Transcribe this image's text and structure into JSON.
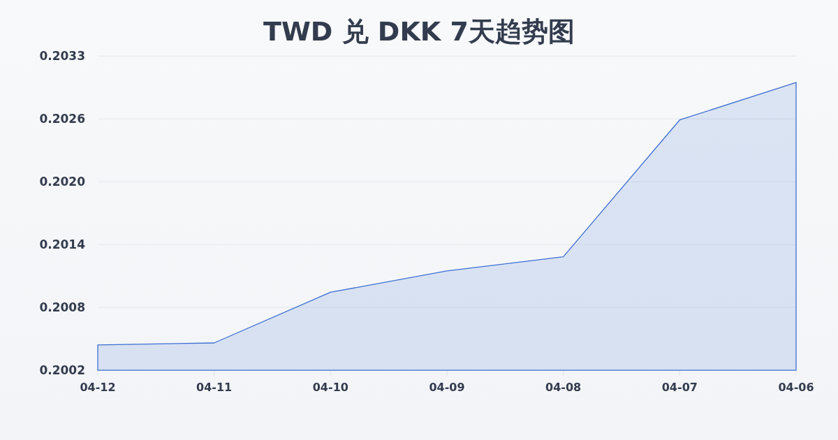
{
  "chart_data": {
    "type": "area",
    "title": "TWD 兑 DKK 7天趋势图",
    "categories": [
      "04-12",
      "04-11",
      "04-10",
      "04-09",
      "04-08",
      "04-07",
      "04-06"
    ],
    "values": [
      0.20041,
      0.20043,
      0.20093,
      0.20114,
      0.20128,
      0.20263,
      0.203
    ],
    "color": "#3d6fd1",
    "ylim": [
      0.20016,
      0.20326
    ],
    "yticks": [
      {
        "value": 0.20016,
        "label": "0.2002"
      },
      {
        "value": 0.20078,
        "label": "0.2008"
      },
      {
        "value": 0.2014,
        "label": "0.2014"
      },
      {
        "value": 0.20202,
        "label": "0.2020"
      },
      {
        "value": 0.20264,
        "label": "0.2026"
      },
      {
        "value": 0.20326,
        "label": "0.2033"
      }
    ],
    "grid": "y"
  }
}
